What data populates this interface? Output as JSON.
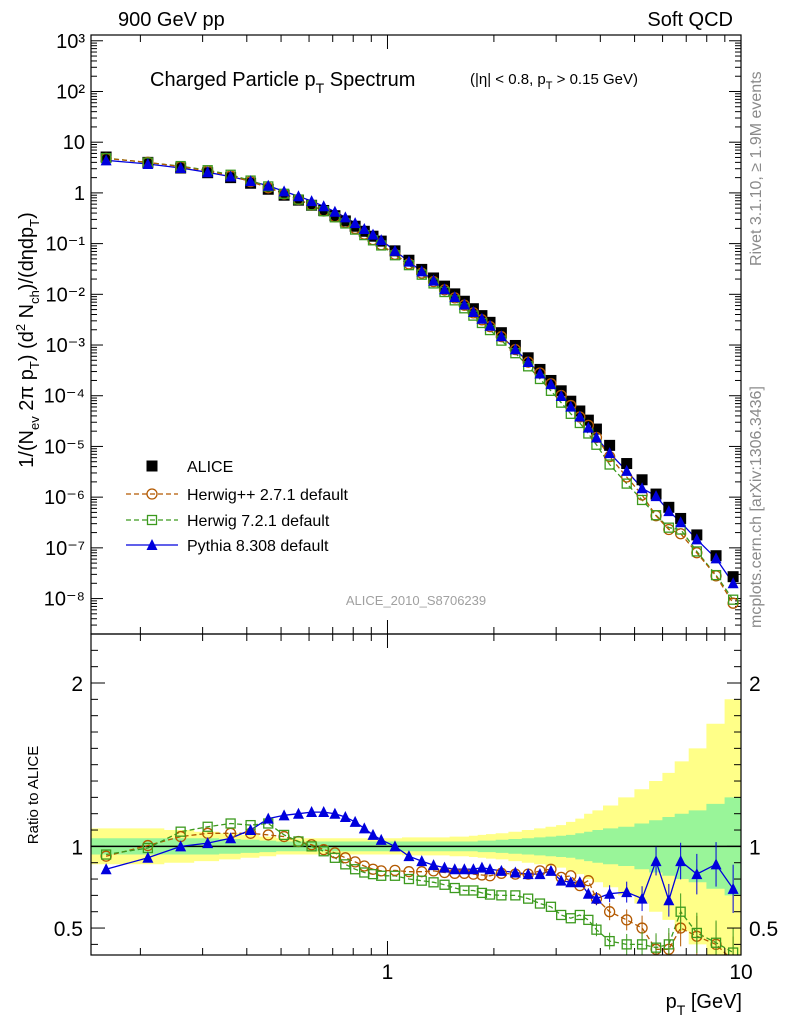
{
  "header": {
    "left": "900 GeV pp",
    "right": "Soft QCD"
  },
  "side_labels": {
    "rivet": "Rivet 3.1.10, ≥ 1.9M events",
    "mcplots": "mcplots.cern.ch [arXiv:1306.3436]"
  },
  "chart_data": [
    {
      "type": "scatter",
      "title_main": "Charged Particle p",
      "title_main_sub": "T",
      "title_main_tail": " Spectrum",
      "title_cut_a": "(|η| < 0.8, p",
      "title_cut_sub": "T",
      "title_cut_b": " > 0.15 GeV)",
      "ylabel": "1/(N_ev 2π p_T) (d² N_ch)/(dηdp_T)",
      "y_scale": "log",
      "ylim": [
        2e-09,
        1300
      ],
      "y_ticks": [
        "10⁻⁸",
        "10⁻⁷",
        "10⁻⁶",
        "10⁻⁵",
        "10⁻⁴",
        "10⁻³",
        "10⁻²",
        "10⁻¹",
        "1",
        "10",
        "10²",
        "10³"
      ],
      "x_scale": "log",
      "xlim": [
        0.145,
        10
      ],
      "watermark": "ALICE_2010_S8706239",
      "legend_position": "lower-left",
      "x": [
        0.16,
        0.21,
        0.26,
        0.31,
        0.36,
        0.41,
        0.46,
        0.51,
        0.56,
        0.61,
        0.66,
        0.71,
        0.76,
        0.81,
        0.86,
        0.91,
        0.96,
        1.05,
        1.15,
        1.25,
        1.35,
        1.45,
        1.55,
        1.65,
        1.75,
        1.85,
        1.95,
        2.1,
        2.3,
        2.5,
        2.7,
        2.9,
        3.1,
        3.3,
        3.5,
        3.7,
        3.9,
        4.25,
        4.75,
        5.25,
        5.75,
        6.25,
        6.75,
        7.5,
        8.5,
        9.5
      ],
      "series": [
        {
          "name": "ALICE",
          "color": "#000000",
          "marker": "filled-square",
          "line": "none",
          "values": [
            5.1,
            4.0,
            3.1,
            2.5,
            2.0,
            1.55,
            1.18,
            0.9,
            0.72,
            0.57,
            0.45,
            0.355,
            0.28,
            0.22,
            0.175,
            0.14,
            0.112,
            0.072,
            0.047,
            0.031,
            0.021,
            0.0145,
            0.0102,
            0.0073,
            0.0052,
            0.0038,
            0.0028,
            0.00175,
            0.00098,
            0.00056,
            0.00033,
            0.0002,
            0.000125,
            7.8e-05,
            5e-05,
            3.3e-05,
            2.2e-05,
            1.05e-05,
            4.6e-06,
            2.2e-06,
            1.15e-06,
            6.3e-07,
            3.8e-07,
            1.8e-07,
            7e-08,
            2.7e-08
          ]
        },
        {
          "name": "Herwig++ 2.7.1 default",
          "color": "#b35900",
          "marker": "open-circle",
          "line": "dashed",
          "values": [
            4.8,
            4.02,
            3.29,
            2.7,
            2.16,
            1.67,
            1.26,
            0.95,
            0.74,
            0.575,
            0.44,
            0.34,
            0.26,
            0.199,
            0.154,
            0.12,
            0.095,
            0.0614,
            0.0397,
            0.0262,
            0.0178,
            0.0122,
            0.0085,
            0.0061,
            0.0043,
            0.00314,
            0.0023,
            0.00146,
            0.00081,
            0.00046,
            0.00028,
            0.000172,
            0.000101,
            6.4e-05,
            3.8e-05,
            2.6e-05,
            1.5e-05,
            6.3e-06,
            2.5e-06,
            1.1e-06,
            4.3e-07,
            2.3e-07,
            1.9e-07,
            8e-08,
            2.8e-08,
            8.1e-09
          ]
        },
        {
          "name": "Herwig 7.2.1 default",
          "color": "#3c9a1e",
          "marker": "open-square",
          "line": "dashed",
          "values": [
            4.85,
            3.96,
            3.38,
            2.8,
            2.28,
            1.75,
            1.34,
            0.96,
            0.74,
            0.57,
            0.435,
            0.33,
            0.25,
            0.189,
            0.147,
            0.116,
            0.092,
            0.059,
            0.0376,
            0.0244,
            0.0164,
            0.0111,
            0.0076,
            0.0053,
            0.0038,
            0.00272,
            0.00197,
            0.00122,
            0.00069,
            0.00038,
            0.000214,
            0.000125,
            7.3e-05,
            4.4e-05,
            2.9e-05,
            1.8e-05,
            1.08e-05,
            4.4e-06,
            1.85e-06,
            8.8e-07,
            4.4e-07,
            2.5e-07,
            2.3e-07,
            8.5e-08,
            2.9e-08,
            9.5e-09
          ]
        },
        {
          "name": "Pythia 8.308 default",
          "color": "#0000dd",
          "marker": "filled-triangle",
          "line": "solid",
          "values": [
            4.39,
            3.72,
            3.1,
            2.55,
            2.1,
            1.71,
            1.38,
            1.07,
            0.86,
            0.69,
            0.545,
            0.425,
            0.33,
            0.253,
            0.194,
            0.15,
            0.117,
            0.072,
            0.0442,
            0.0283,
            0.0186,
            0.0126,
            0.0088,
            0.0063,
            0.00447,
            0.0033,
            0.0024,
            0.00149,
            0.00082,
            0.000463,
            0.000274,
            0.000169,
            9.9e-05,
            6.1e-05,
            3.9e-05,
            2.35e-05,
            1.5e-05,
            7.4e-06,
            3.3e-06,
            1.5e-06,
            1.05e-06,
            5.3e-07,
            3.2e-07,
            1.47e-07,
            6.2e-08,
            2e-08
          ]
        }
      ]
    },
    {
      "type": "scatter",
      "ylabel": "Ratio to ALICE",
      "xlabel_a": "p",
      "xlabel_sub": "T",
      "xlabel_b": " [GeV]",
      "ylim": [
        0.335,
        2.3
      ],
      "y_ticks": [
        "0.5",
        "1",
        "2"
      ],
      "y_tick_values": [
        0.5,
        1,
        2
      ],
      "x_scale": "log",
      "xlim": [
        0.145,
        10
      ],
      "x_ticks": [
        "1",
        "10"
      ],
      "x_tick_values": [
        1,
        10
      ],
      "reference_line": 1,
      "band_inner": {
        "color": "#99f599",
        "halfwidth": [
          0.05,
          0.05,
          0.05,
          0.05,
          0.045,
          0.04,
          0.035,
          0.03,
          0.03,
          0.03,
          0.03,
          0.03,
          0.03,
          0.03,
          0.03,
          0.03,
          0.03,
          0.03,
          0.03,
          0.03,
          0.03,
          0.03,
          0.03,
          0.03,
          0.03,
          0.035,
          0.035,
          0.04,
          0.045,
          0.05,
          0.055,
          0.06,
          0.065,
          0.07,
          0.08,
          0.09,
          0.1,
          0.11,
          0.12,
          0.14,
          0.16,
          0.18,
          0.2,
          0.22,
          0.26,
          0.3
        ]
      },
      "band_outer": {
        "color": "#ffff88",
        "halfwidth": [
          0.11,
          0.11,
          0.1,
          0.09,
          0.08,
          0.07,
          0.06,
          0.05,
          0.05,
          0.05,
          0.05,
          0.05,
          0.05,
          0.05,
          0.05,
          0.05,
          0.05,
          0.05,
          0.055,
          0.055,
          0.055,
          0.055,
          0.06,
          0.06,
          0.065,
          0.07,
          0.075,
          0.08,
          0.09,
          0.1,
          0.11,
          0.12,
          0.13,
          0.15,
          0.17,
          0.2,
          0.22,
          0.25,
          0.3,
          0.35,
          0.4,
          0.45,
          0.52,
          0.6,
          0.75,
          0.9
        ]
      },
      "series": [
        {
          "name": "Herwig++ 2.7.1 default",
          "color": "#b35900",
          "values": [
            0.94,
            1.005,
            1.06,
            1.08,
            1.08,
            1.08,
            1.07,
            1.06,
            1.03,
            1.01,
            0.98,
            0.96,
            0.93,
            0.905,
            0.88,
            0.86,
            0.85,
            0.853,
            0.845,
            0.845,
            0.85,
            0.84,
            0.835,
            0.835,
            0.83,
            0.825,
            0.82,
            0.835,
            0.83,
            0.83,
            0.85,
            0.86,
            0.81,
            0.82,
            0.76,
            0.79,
            0.68,
            0.6,
            0.55,
            0.5,
            0.37,
            0.37,
            0.5,
            0.45,
            0.4,
            0.3
          ]
        },
        {
          "name": "Herwig 7.2.1 default",
          "color": "#3c9a1e",
          "values": [
            0.95,
            0.99,
            1.09,
            1.12,
            1.14,
            1.13,
            1.14,
            1.07,
            1.03,
            1.0,
            0.97,
            0.93,
            0.89,
            0.86,
            0.84,
            0.83,
            0.82,
            0.82,
            0.8,
            0.79,
            0.78,
            0.765,
            0.745,
            0.73,
            0.73,
            0.715,
            0.705,
            0.7,
            0.7,
            0.68,
            0.65,
            0.63,
            0.58,
            0.56,
            0.58,
            0.55,
            0.49,
            0.42,
            0.4,
            0.4,
            0.38,
            0.4,
            0.6,
            0.47,
            0.41,
            0.35
          ]
        },
        {
          "name": "Pythia 8.308 default",
          "color": "#0000dd",
          "values": [
            0.86,
            0.93,
            1.0,
            1.02,
            1.05,
            1.1,
            1.17,
            1.19,
            1.2,
            1.21,
            1.21,
            1.2,
            1.18,
            1.15,
            1.11,
            1.07,
            1.04,
            1.0,
            0.94,
            0.91,
            0.885,
            0.87,
            0.86,
            0.86,
            0.86,
            0.87,
            0.86,
            0.85,
            0.84,
            0.83,
            0.83,
            0.85,
            0.79,
            0.78,
            0.78,
            0.71,
            0.68,
            0.71,
            0.72,
            0.68,
            0.91,
            0.67,
            0.91,
            0.83,
            0.89,
            0.74
          ]
        }
      ]
    }
  ]
}
